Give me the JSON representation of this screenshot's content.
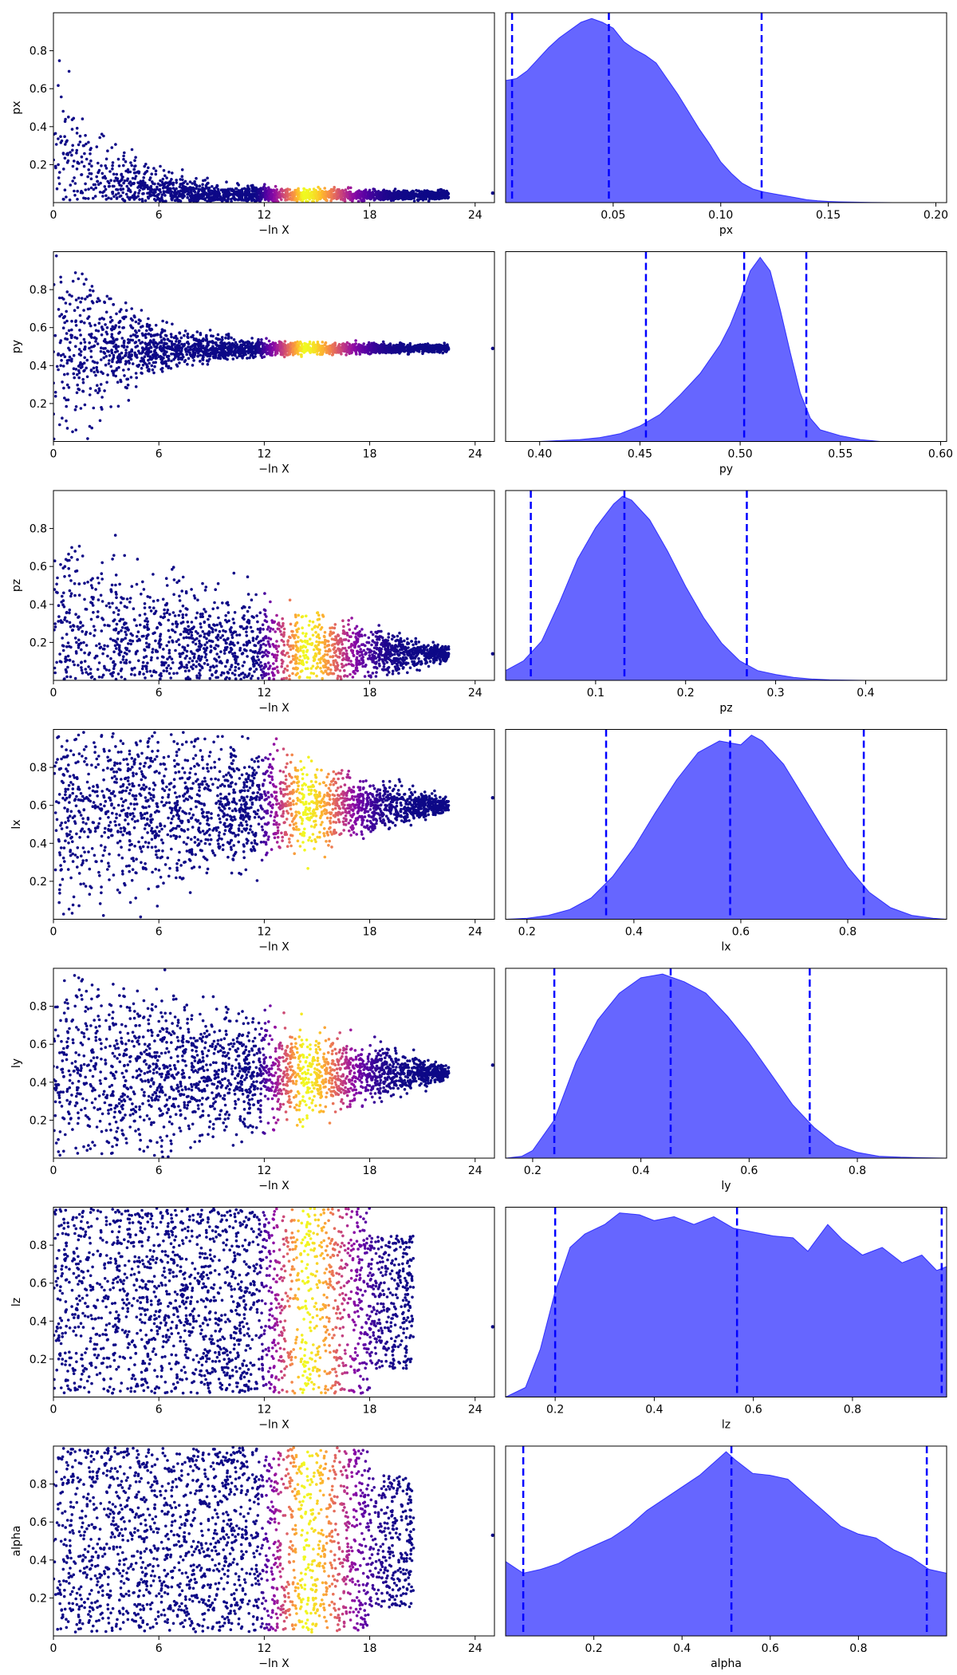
{
  "colors": {
    "scatter_colormap": "plasma",
    "kde_fill": "#0000ff",
    "kde_fill_opacity": 0.6,
    "quantile_line": "#0000ff",
    "axes_frame": "#000000"
  },
  "chart_data": [
    {
      "type": "scatter",
      "name": "px-trace",
      "xlabel": "−ln X",
      "ylabel": "px",
      "xlim": [
        0,
        25.1
      ],
      "ylim": [
        0,
        1.0
      ],
      "xticks": [
        0,
        6,
        12,
        18,
        24
      ],
      "yticks": [
        0.2,
        0.4,
        0.6,
        0.8
      ],
      "xtick_labels": [
        "0",
        "6",
        "12",
        "18",
        "24"
      ],
      "ytick_labels": [
        "0.2",
        "0.4",
        "0.6",
        "0.8"
      ],
      "shape": "funnel",
      "y_center": 0.04,
      "max_x": 25,
      "outlier": [
        25,
        0.05
      ],
      "color_peak_x": 14.2
    },
    {
      "type": "area",
      "name": "px-kde",
      "xlabel": "px",
      "xlim": [
        0.0,
        0.205
      ],
      "xticks": [
        0.05,
        0.1,
        0.15,
        0.2
      ],
      "xtick_labels": [
        "0.05",
        "0.10",
        "0.15",
        "0.20"
      ],
      "x": [
        0.0,
        0.005,
        0.01,
        0.015,
        0.02,
        0.025,
        0.03,
        0.035,
        0.04,
        0.045,
        0.05,
        0.055,
        0.06,
        0.065,
        0.07,
        0.075,
        0.08,
        0.085,
        0.09,
        0.095,
        0.1,
        0.105,
        0.11,
        0.115,
        0.12,
        0.125,
        0.13,
        0.135,
        0.14,
        0.145,
        0.15,
        0.155,
        0.16,
        0.17,
        0.18,
        0.205
      ],
      "y": [
        0.63,
        0.64,
        0.68,
        0.74,
        0.8,
        0.85,
        0.89,
        0.93,
        0.95,
        0.93,
        0.9,
        0.83,
        0.79,
        0.76,
        0.72,
        0.64,
        0.56,
        0.47,
        0.38,
        0.3,
        0.21,
        0.15,
        0.1,
        0.07,
        0.055,
        0.045,
        0.035,
        0.025,
        0.015,
        0.01,
        0.006,
        0.004,
        0.003,
        0.001,
        0.0,
        0.0
      ],
      "quantiles": [
        0.003,
        0.048,
        0.119
      ]
    },
    {
      "type": "scatter",
      "name": "py-trace",
      "xlabel": "−ln X",
      "ylabel": "py",
      "xlim": [
        0,
        25.1
      ],
      "ylim": [
        0,
        1.0
      ],
      "xticks": [
        0,
        6,
        12,
        18,
        24
      ],
      "yticks": [
        0.2,
        0.4,
        0.6,
        0.8
      ],
      "xtick_labels": [
        "0",
        "6",
        "12",
        "18",
        "24"
      ],
      "ytick_labels": [
        "0.2",
        "0.4",
        "0.6",
        "0.8"
      ],
      "shape": "funnel",
      "y_center": 0.49,
      "max_x": 25,
      "outlier": [
        25,
        0.49
      ],
      "color_peak_x": 14.2
    },
    {
      "type": "area",
      "name": "py-kde",
      "xlabel": "py",
      "xlim": [
        0.383,
        0.603
      ],
      "xticks": [
        0.4,
        0.45,
        0.5,
        0.55,
        0.6
      ],
      "xtick_labels": [
        "0.40",
        "0.45",
        "0.50",
        "0.55",
        "0.60"
      ],
      "x": [
        0.383,
        0.4,
        0.42,
        0.43,
        0.44,
        0.45,
        0.46,
        0.47,
        0.48,
        0.49,
        0.495,
        0.5,
        0.505,
        0.51,
        0.515,
        0.52,
        0.525,
        0.53,
        0.535,
        0.54,
        0.55,
        0.56,
        0.57,
        0.603
      ],
      "y": [
        0.0,
        0.0,
        0.01,
        0.02,
        0.04,
        0.08,
        0.14,
        0.24,
        0.35,
        0.5,
        0.6,
        0.73,
        0.88,
        0.95,
        0.88,
        0.68,
        0.46,
        0.25,
        0.12,
        0.06,
        0.03,
        0.01,
        0.0,
        0.0
      ],
      "quantiles": [
        0.453,
        0.502,
        0.533
      ]
    },
    {
      "type": "scatter",
      "name": "pz-trace",
      "xlabel": "−ln X",
      "ylabel": "pz",
      "xlim": [
        0,
        25.1
      ],
      "ylim": [
        0,
        1.0
      ],
      "xticks": [
        0,
        6,
        12,
        18,
        24
      ],
      "yticks": [
        0.2,
        0.4,
        0.6,
        0.8
      ],
      "xtick_labels": [
        "0",
        "6",
        "12",
        "18",
        "24"
      ],
      "ytick_labels": [
        "0.2",
        "0.4",
        "0.6",
        "0.8"
      ],
      "shape": "wedge",
      "y_center": 0.14,
      "max_x": 25,
      "outlier": [
        25,
        0.14
      ],
      "color_peak_x": 14.2
    },
    {
      "type": "area",
      "name": "pz-kde",
      "xlabel": "pz",
      "xlim": [
        0.0,
        0.49
      ],
      "xticks": [
        0.1,
        0.2,
        0.3,
        0.4
      ],
      "xtick_labels": [
        "0.1",
        "0.2",
        "0.3",
        "0.4"
      ],
      "x": [
        0.0,
        0.02,
        0.04,
        0.06,
        0.08,
        0.1,
        0.12,
        0.13,
        0.14,
        0.16,
        0.18,
        0.2,
        0.22,
        0.24,
        0.26,
        0.28,
        0.3,
        0.32,
        0.34,
        0.36,
        0.4,
        0.49
      ],
      "y": [
        0.05,
        0.1,
        0.2,
        0.4,
        0.62,
        0.78,
        0.9,
        0.94,
        0.92,
        0.82,
        0.66,
        0.48,
        0.32,
        0.19,
        0.1,
        0.05,
        0.03,
        0.015,
        0.007,
        0.003,
        0.0,
        0.0
      ],
      "quantiles": [
        0.028,
        0.132,
        0.268
      ]
    },
    {
      "type": "scatter",
      "name": "lx-trace",
      "xlabel": "−ln X",
      "ylabel": "lx",
      "xlim": [
        0,
        25.1
      ],
      "ylim": [
        0,
        1.0
      ],
      "xticks": [
        0,
        6,
        12,
        18,
        24
      ],
      "yticks": [
        0.2,
        0.4,
        0.6,
        0.8
      ],
      "xtick_labels": [
        "0",
        "6",
        "12",
        "18",
        "24"
      ],
      "ytick_labels": [
        "0.2",
        "0.4",
        "0.6",
        "0.8"
      ],
      "shape": "wedge",
      "y_center": 0.6,
      "max_x": 25,
      "outlier": [
        25,
        0.64
      ],
      "color_peak_x": 14.2
    },
    {
      "type": "area",
      "name": "lx-kde",
      "xlabel": "lx",
      "xlim": [
        0.16,
        0.985
      ],
      "xticks": [
        0.2,
        0.4,
        0.6,
        0.8
      ],
      "xtick_labels": [
        "0.2",
        "0.4",
        "0.6",
        "0.8"
      ],
      "x": [
        0.16,
        0.2,
        0.24,
        0.28,
        0.32,
        0.36,
        0.4,
        0.44,
        0.48,
        0.52,
        0.56,
        0.6,
        0.62,
        0.64,
        0.68,
        0.72,
        0.76,
        0.8,
        0.84,
        0.88,
        0.92,
        0.96,
        0.985
      ],
      "y": [
        0.0,
        0.005,
        0.02,
        0.05,
        0.11,
        0.22,
        0.37,
        0.55,
        0.72,
        0.86,
        0.92,
        0.9,
        0.95,
        0.92,
        0.8,
        0.62,
        0.44,
        0.27,
        0.14,
        0.06,
        0.02,
        0.005,
        0.0
      ],
      "quantiles": [
        0.348,
        0.58,
        0.83
      ]
    },
    {
      "type": "scatter",
      "name": "ly-trace",
      "xlabel": "−ln X",
      "ylabel": "ly",
      "xlim": [
        0,
        25.1
      ],
      "ylim": [
        0,
        1.0
      ],
      "xticks": [
        0,
        6,
        12,
        18,
        24
      ],
      "yticks": [
        0.2,
        0.4,
        0.6,
        0.8
      ],
      "xtick_labels": [
        "0",
        "6",
        "12",
        "18",
        "24"
      ],
      "ytick_labels": [
        "0.2",
        "0.4",
        "0.6",
        "0.8"
      ],
      "shape": "wedge",
      "y_center": 0.45,
      "max_x": 25,
      "outlier": [
        25,
        0.49
      ],
      "color_peak_x": 14.2
    },
    {
      "type": "area",
      "name": "ly-kde",
      "xlabel": "ly",
      "xlim": [
        0.15,
        0.965
      ],
      "xticks": [
        0.2,
        0.4,
        0.6,
        0.8
      ],
      "xtick_labels": [
        "0.2",
        "0.4",
        "0.6",
        "0.8"
      ],
      "x": [
        0.15,
        0.18,
        0.2,
        0.24,
        0.28,
        0.32,
        0.36,
        0.4,
        0.44,
        0.48,
        0.52,
        0.56,
        0.6,
        0.64,
        0.68,
        0.72,
        0.76,
        0.8,
        0.84,
        0.88,
        0.965
      ],
      "y": [
        0.0,
        0.01,
        0.04,
        0.2,
        0.5,
        0.72,
        0.86,
        0.94,
        0.96,
        0.92,
        0.86,
        0.74,
        0.6,
        0.44,
        0.28,
        0.16,
        0.07,
        0.03,
        0.01,
        0.005,
        0.0
      ],
      "quantiles": [
        0.24,
        0.455,
        0.712
      ]
    },
    {
      "type": "scatter",
      "name": "lz-trace",
      "xlabel": "−ln X",
      "ylabel": "lz",
      "xlim": [
        0,
        25.1
      ],
      "ylim": [
        0,
        1.0
      ],
      "xticks": [
        0,
        6,
        12,
        18,
        24
      ],
      "yticks": [
        0.2,
        0.4,
        0.6,
        0.8
      ],
      "xtick_labels": [
        "0",
        "6",
        "12",
        "18",
        "24"
      ],
      "ytick_labels": [
        "0.2",
        "0.4",
        "0.6",
        "0.8"
      ],
      "shape": "uniform",
      "y_center": 0.58,
      "max_x": 25,
      "outlier": [
        25,
        0.37
      ],
      "color_peak_x": 14.2
    },
    {
      "type": "area",
      "name": "lz-kde",
      "xlabel": "lz",
      "xlim": [
        0.1,
        0.99
      ],
      "xticks": [
        0.2,
        0.4,
        0.6,
        0.8
      ],
      "xtick_labels": [
        "0.2",
        "0.4",
        "0.6",
        "0.8"
      ],
      "x": [
        0.1,
        0.14,
        0.17,
        0.2,
        0.23,
        0.26,
        0.3,
        0.33,
        0.37,
        0.4,
        0.44,
        0.48,
        0.52,
        0.56,
        0.6,
        0.64,
        0.68,
        0.71,
        0.75,
        0.78,
        0.82,
        0.86,
        0.9,
        0.94,
        0.97,
        0.99
      ],
      "y": [
        0.0,
        0.05,
        0.25,
        0.55,
        0.78,
        0.85,
        0.9,
        0.96,
        0.95,
        0.92,
        0.94,
        0.9,
        0.94,
        0.88,
        0.86,
        0.84,
        0.83,
        0.76,
        0.9,
        0.82,
        0.74,
        0.78,
        0.7,
        0.74,
        0.66,
        0.68
      ],
      "quantiles": [
        0.2,
        0.567,
        0.98
      ]
    },
    {
      "type": "scatter",
      "name": "alpha-trace",
      "xlabel": "−ln X",
      "ylabel": "alpha",
      "xlim": [
        0,
        25.1
      ],
      "ylim": [
        0,
        1.0
      ],
      "xticks": [
        0,
        6,
        12,
        18,
        24
      ],
      "yticks": [
        0.2,
        0.4,
        0.6,
        0.8
      ],
      "xtick_labels": [
        "0",
        "6",
        "12",
        "18",
        "24"
      ],
      "ytick_labels": [
        "0.2",
        "0.4",
        "0.6",
        "0.8"
      ],
      "shape": "uniform",
      "y_center": 0.5,
      "max_x": 25,
      "outlier": [
        25,
        0.53
      ],
      "color_peak_x": 14.2
    },
    {
      "type": "area",
      "name": "alpha-kde",
      "xlabel": "alpha",
      "xlim": [
        0.0,
        1.0
      ],
      "xticks": [
        0.2,
        0.4,
        0.6,
        0.8
      ],
      "xtick_labels": [
        "0.2",
        "0.4",
        "0.6",
        "0.8"
      ],
      "x": [
        0.0,
        0.04,
        0.08,
        0.12,
        0.16,
        0.2,
        0.24,
        0.28,
        0.32,
        0.36,
        0.4,
        0.44,
        0.48,
        0.5,
        0.52,
        0.56,
        0.6,
        0.64,
        0.68,
        0.72,
        0.76,
        0.8,
        0.84,
        0.88,
        0.92,
        0.96,
        1.0
      ],
      "y": [
        0.38,
        0.32,
        0.34,
        0.37,
        0.42,
        0.46,
        0.5,
        0.56,
        0.64,
        0.7,
        0.76,
        0.82,
        0.9,
        0.94,
        0.9,
        0.83,
        0.82,
        0.8,
        0.72,
        0.64,
        0.56,
        0.52,
        0.5,
        0.44,
        0.4,
        0.34,
        0.32
      ],
      "quantiles": [
        0.04,
        0.512,
        0.955
      ]
    }
  ]
}
